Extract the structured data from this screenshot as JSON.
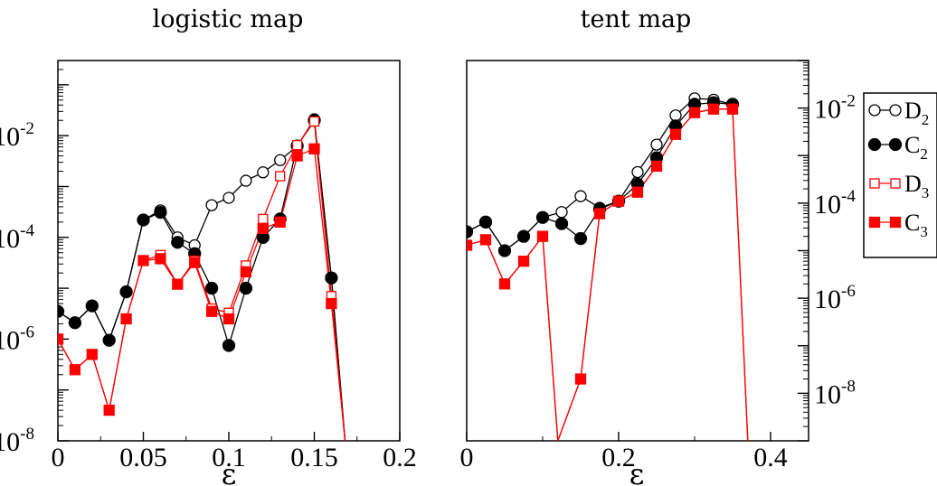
{
  "chart_data": [
    {
      "type": "line",
      "title": "logistic map",
      "xlabel": "ε",
      "ylabel": "",
      "xlim": [
        0,
        0.2
      ],
      "ylim": [
        1e-08,
        0.3
      ],
      "yscale": "log",
      "y_axis_side": "left",
      "xticks": [
        0,
        0.05,
        0.1,
        0.15,
        0.2
      ],
      "xtick_labels": [
        "0",
        "0.05",
        "0.1",
        "0.15",
        "0.2"
      ],
      "yticks": [
        1e-08,
        1e-06,
        0.0001,
        0.01
      ],
      "ytick_labels": [
        {
          "base": "10",
          "exp": "-8"
        },
        {
          "base": "10",
          "exp": "-6"
        },
        {
          "base": "10",
          "exp": "-4"
        },
        {
          "base": "10",
          "exp": "-2"
        }
      ],
      "series": [
        {
          "name": "D2",
          "marker": "open-circle",
          "color": "#000000",
          "x": [
            0,
            0.01,
            0.02,
            0.03,
            0.04,
            0.05,
            0.06,
            0.07,
            0.08,
            0.09,
            0.1,
            0.11,
            0.12,
            0.13,
            0.14,
            0.15,
            0.16,
            0.168
          ],
          "y": [
            3.5e-06,
            2.1e-06,
            4.5e-06,
            9.5e-07,
            8.5e-06,
            0.00022,
            0.00034,
            0.0001,
            7e-05,
            0.00043,
            0.0006,
            0.0013,
            0.0019,
            0.0033,
            0.0062,
            0.021,
            1.6e-05,
            1e-08
          ]
        },
        {
          "name": "C2",
          "marker": "filled-circle",
          "color": "#000000",
          "x": [
            0,
            0.01,
            0.02,
            0.03,
            0.04,
            0.05,
            0.06,
            0.07,
            0.08,
            0.09,
            0.1,
            0.11,
            0.12,
            0.13,
            0.14,
            0.15,
            0.16,
            0.168
          ],
          "y": [
            3.5e-06,
            2.1e-06,
            4.5e-06,
            9.5e-07,
            8.5e-06,
            0.00022,
            0.00031,
            8e-05,
            4.8e-05,
            1e-05,
            7.5e-07,
            1e-05,
            0.0001,
            0.00023,
            0.0063,
            0.02,
            1.6e-05,
            1e-08
          ]
        },
        {
          "name": "D3",
          "marker": "open-square",
          "color": "#ff0000",
          "x": [
            0,
            0.01,
            0.02,
            0.03,
            0.04,
            0.05,
            0.06,
            0.07,
            0.08,
            0.09,
            0.1,
            0.11,
            0.12,
            0.13,
            0.14,
            0.15,
            0.16,
            0.168
          ],
          "y": [
            1e-06,
            2.5e-07,
            5e-07,
            4e-08,
            2.5e-06,
            3.5e-05,
            4.5e-05,
            1.2e-05,
            3.5e-05,
            4e-06,
            3.3e-06,
            2.8e-05,
            0.00023,
            0.0016,
            0.0065,
            0.019,
            7e-06,
            1e-08
          ]
        },
        {
          "name": "C3",
          "marker": "filled-square",
          "color": "#ff0000",
          "x": [
            0,
            0.01,
            0.02,
            0.03,
            0.04,
            0.05,
            0.06,
            0.07,
            0.08,
            0.09,
            0.1,
            0.11,
            0.12,
            0.13,
            0.14,
            0.15,
            0.16,
            0.168
          ],
          "y": [
            1e-06,
            2.5e-07,
            5e-07,
            4e-08,
            2.5e-06,
            3.5e-05,
            3.8e-05,
            1.2e-05,
            3.2e-05,
            3.5e-06,
            2.5e-06,
            2.1e-05,
            0.00015,
            0.0002,
            0.004,
            0.0055,
            5e-06,
            1e-08
          ]
        }
      ]
    },
    {
      "type": "line",
      "title": "tent map",
      "xlabel": "ε",
      "ylabel": "",
      "xlim": [
        0,
        0.45
      ],
      "ylim": [
        1e-09,
        0.1
      ],
      "yscale": "log",
      "y_axis_side": "right",
      "xticks": [
        0,
        0.2,
        0.4
      ],
      "xtick_labels": [
        "0",
        "0.2",
        "0.4"
      ],
      "yticks": [
        1e-08,
        1e-06,
        0.0001,
        0.01
      ],
      "ytick_labels": [
        {
          "base": "10",
          "exp": "-8"
        },
        {
          "base": "10",
          "exp": "-6"
        },
        {
          "base": "10",
          "exp": "-4"
        },
        {
          "base": "10",
          "exp": "-2"
        }
      ],
      "series": [
        {
          "name": "D2",
          "marker": "open-circle",
          "color": "#000000",
          "x": [
            0,
            0.025,
            0.05,
            0.075,
            0.1,
            0.125,
            0.15,
            0.175,
            0.2,
            0.225,
            0.25,
            0.275,
            0.3,
            0.325,
            0.35
          ],
          "y": [
            2.5e-05,
            4e-05,
            1e-05,
            2e-05,
            5e-05,
            6.5e-05,
            0.00014,
            8e-05,
            0.00011,
            0.00045,
            0.0017,
            0.007,
            0.016,
            0.015,
            0.012
          ]
        },
        {
          "name": "C2",
          "marker": "filled-circle",
          "color": "#000000",
          "x": [
            0,
            0.025,
            0.05,
            0.075,
            0.1,
            0.125,
            0.15,
            0.175,
            0.2,
            0.225,
            0.25,
            0.275,
            0.3,
            0.325,
            0.35
          ],
          "y": [
            2.5e-05,
            4e-05,
            1e-05,
            2e-05,
            5e-05,
            3.7e-05,
            1.8e-05,
            7.5e-05,
            0.00011,
            0.00025,
            0.0009,
            0.0042,
            0.012,
            0.013,
            0.012
          ]
        },
        {
          "name": "D3",
          "marker": "open-square",
          "color": "#ff0000",
          "x": [
            0,
            0.025,
            0.05,
            0.075,
            0.1,
            0.12,
            0.15,
            0.175,
            0.2,
            0.225,
            0.25,
            0.275,
            0.3,
            0.325,
            0.35,
            0.37
          ],
          "y": [
            1.3e-05,
            1.7e-05,
            2e-06,
            6e-06,
            2e-05,
            1e-09,
            2e-08,
            6e-05,
            0.00011,
            0.00017,
            0.0006,
            0.0028,
            0.008,
            0.0095,
            0.0095,
            1e-09
          ]
        },
        {
          "name": "C3",
          "marker": "filled-square",
          "color": "#ff0000",
          "x": [
            0,
            0.025,
            0.05,
            0.075,
            0.1,
            0.12,
            0.15,
            0.175,
            0.2,
            0.225,
            0.25,
            0.275,
            0.3,
            0.325,
            0.35,
            0.37
          ],
          "y": [
            1.3e-05,
            1.7e-05,
            2e-06,
            6e-06,
            2e-05,
            1e-09,
            2e-08,
            6e-05,
            0.00011,
            0.00017,
            0.0006,
            0.0028,
            0.008,
            0.0095,
            0.0095,
            1e-09
          ]
        }
      ]
    }
  ],
  "legend": {
    "placement": "right of tent map, top",
    "items": [
      {
        "base": "D",
        "sub": "2",
        "marker": "open-circle",
        "color": "#000000"
      },
      {
        "base": "C",
        "sub": "2",
        "marker": "filled-circle",
        "color": "#000000"
      },
      {
        "base": "D",
        "sub": "3",
        "marker": "open-square",
        "color": "#ff0000"
      },
      {
        "base": "C",
        "sub": "3",
        "marker": "filled-square",
        "color": "#ff0000"
      }
    ]
  }
}
